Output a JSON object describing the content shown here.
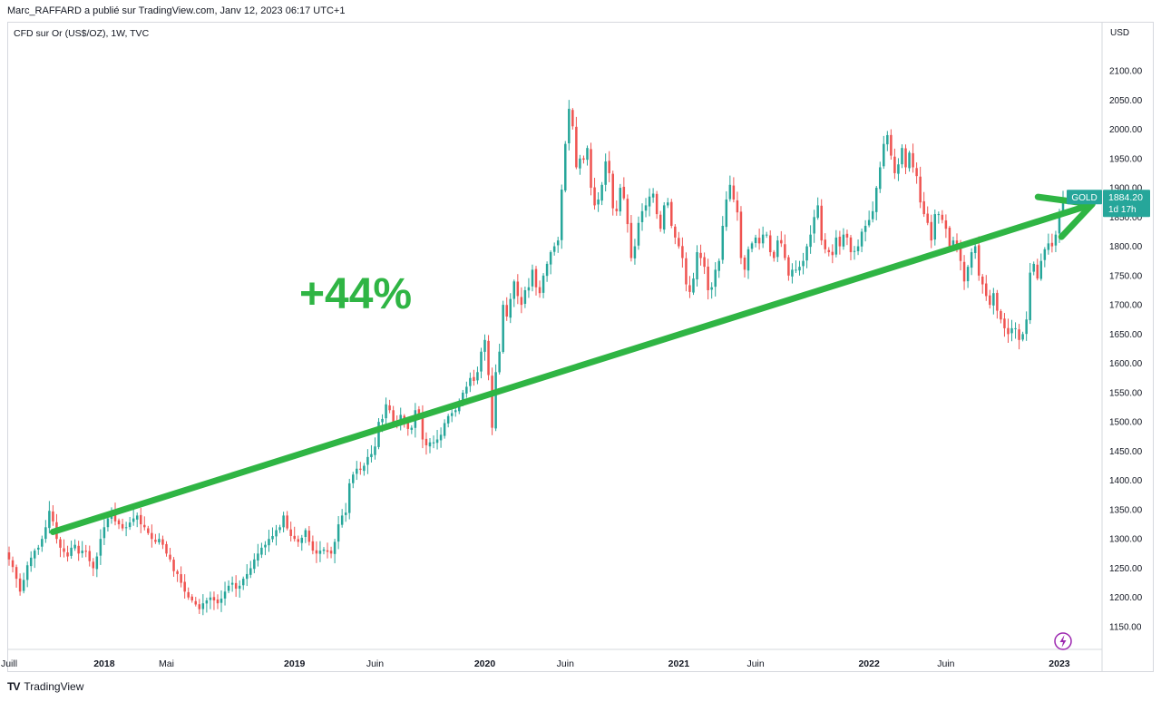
{
  "header": {
    "published": "Marc_RAFFARD a publié sur TradingView.com, Janv 12, 2023 06:17 UTC+1",
    "symbol": "CFD sur Or (US$/OZ), 1W, TVC",
    "currency": "USD"
  },
  "footer": {
    "brand": "TradingView"
  },
  "chart_data": {
    "type": "candlestick",
    "symbol": "GOLD",
    "title": "CFD sur Or (US$/OZ), 1W, TVC",
    "price_tag": {
      "label": "GOLD",
      "value": "1884.20",
      "countdown": "1d 17h"
    },
    "annotation": "+44%",
    "trend_arrow": {
      "start": {
        "week": 12,
        "price": 1312
      },
      "end": {
        "week": 296,
        "price": 1872
      }
    },
    "ylim": [
      1130,
      2160
    ],
    "y_ticks": [
      "2100.00",
      "2050.00",
      "2000.00",
      "1950.00",
      "1900.00",
      "1850.00",
      "1800.00",
      "1750.00",
      "1700.00",
      "1650.00",
      "1600.00",
      "1550.00",
      "1500.00",
      "1450.00",
      "1400.00",
      "1350.00",
      "1300.00",
      "1250.00",
      "1200.00",
      "1150.00"
    ],
    "x_ticks": [
      {
        "label": "Juill",
        "week": 0,
        "major": false
      },
      {
        "label": "2018",
        "week": 26,
        "major": true
      },
      {
        "label": "Mai",
        "week": 43,
        "major": false
      },
      {
        "label": "2019",
        "week": 78,
        "major": true
      },
      {
        "label": "Juin",
        "week": 100,
        "major": false
      },
      {
        "label": "2020",
        "week": 130,
        "major": true
      },
      {
        "label": "Juin",
        "week": 152,
        "major": false
      },
      {
        "label": "2021",
        "week": 183,
        "major": true
      },
      {
        "label": "Juin",
        "week": 204,
        "major": false
      },
      {
        "label": "2022",
        "week": 235,
        "major": true
      },
      {
        "label": "Juin",
        "week": 256,
        "major": false
      },
      {
        "label": "2023",
        "week": 287,
        "major": true
      }
    ],
    "weekly_close": [
      1265,
      1252,
      1232,
      1210,
      1230,
      1255,
      1268,
      1280,
      1285,
      1300,
      1320,
      1348,
      1330,
      1300,
      1285,
      1278,
      1270,
      1285,
      1290,
      1275,
      1280,
      1278,
      1262,
      1250,
      1270,
      1300,
      1320,
      1335,
      1348,
      1330,
      1325,
      1318,
      1320,
      1328,
      1335,
      1340,
      1325,
      1320,
      1310,
      1300,
      1295,
      1300,
      1290,
      1275,
      1265,
      1245,
      1240,
      1225,
      1210,
      1200,
      1195,
      1188,
      1180,
      1190,
      1195,
      1200,
      1195,
      1190,
      1198,
      1210,
      1220,
      1225,
      1215,
      1220,
      1232,
      1240,
      1250,
      1265,
      1275,
      1285,
      1290,
      1300,
      1305,
      1315,
      1320,
      1340,
      1318,
      1305,
      1300,
      1295,
      1302,
      1315,
      1295,
      1280,
      1275,
      1280,
      1282,
      1278,
      1275,
      1295,
      1325,
      1340,
      1345,
      1395,
      1410,
      1420,
      1418,
      1425,
      1440,
      1445,
      1458,
      1500,
      1505,
      1530,
      1520,
      1500,
      1495,
      1512,
      1500,
      1488,
      1490,
      1520,
      1510,
      1470,
      1460,
      1465,
      1465,
      1470,
      1478,
      1498,
      1510,
      1515,
      1520,
      1535,
      1550,
      1560,
      1575,
      1570,
      1585,
      1620,
      1640,
      1580,
      1490,
      1585,
      1620,
      1700,
      1680,
      1710,
      1740,
      1715,
      1700,
      1725,
      1730,
      1760,
      1730,
      1720,
      1750,
      1770,
      1790,
      1800,
      1810,
      1897,
      1975,
      2035,
      2005,
      1935,
      1950,
      1948,
      1968,
      1900,
      1870,
      1880,
      1905,
      1945,
      1925,
      1865,
      1860,
      1900,
      1882,
      1838,
      1780,
      1800,
      1840,
      1860,
      1870,
      1885,
      1890,
      1855,
      1830,
      1870,
      1875,
      1835,
      1815,
      1800,
      1780,
      1735,
      1722,
      1745,
      1790,
      1780,
      1765,
      1725,
      1730,
      1760,
      1775,
      1835,
      1880,
      1905,
      1880,
      1858,
      1780,
      1760,
      1795,
      1805,
      1815,
      1805,
      1820,
      1820,
      1790,
      1780,
      1810,
      1805,
      1780,
      1750,
      1760,
      1760,
      1765,
      1775,
      1800,
      1820,
      1850,
      1870,
      1810,
      1795,
      1790,
      1785,
      1815,
      1800,
      1820,
      1815,
      1790,
      1792,
      1800,
      1825,
      1835,
      1845,
      1860,
      1900,
      1935,
      1975,
      1990,
      1955,
      1925,
      1940,
      1968,
      1935,
      1960,
      1935,
      1920,
      1875,
      1855,
      1840,
      1810,
      1855,
      1855,
      1845,
      1830,
      1800,
      1810,
      1800,
      1775,
      1740,
      1765,
      1790,
      1800,
      1750,
      1735,
      1715,
      1700,
      1720,
      1690,
      1675,
      1660,
      1650,
      1660,
      1660,
      1640,
      1650,
      1675,
      1755,
      1770,
      1745,
      1775,
      1795,
      1805,
      1800,
      1820,
      1855,
      1880
    ]
  }
}
